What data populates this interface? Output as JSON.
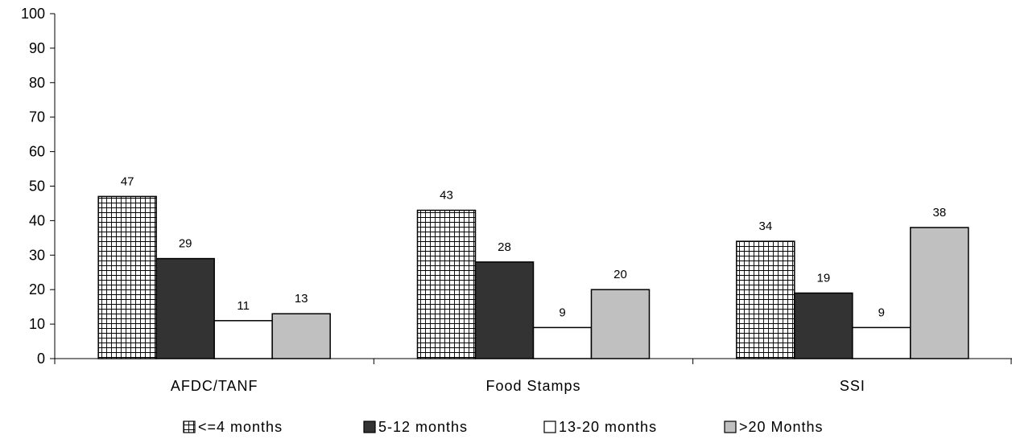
{
  "chart_data": {
    "type": "bar",
    "categories": [
      "AFDC/TANF",
      "Food Stamps",
      "SSI"
    ],
    "series": [
      {
        "name": "<=4 months",
        "values": [
          47,
          43,
          34
        ],
        "labels": [
          "47",
          "43",
          "34"
        ],
        "fill": "grid-pattern"
      },
      {
        "name": "5-12 months",
        "values": [
          29,
          28,
          19
        ],
        "labels": [
          "29",
          "28",
          "19"
        ],
        "fill": "#333333"
      },
      {
        "name": "13-20 months",
        "values": [
          11,
          9,
          9
        ],
        "labels": [
          "11",
          "9",
          "9"
        ],
        "fill": "#ffffff"
      },
      {
        "name": ">20 Months",
        "values": [
          13,
          20,
          38
        ],
        "labels": [
          "13",
          "20",
          "38"
        ],
        "fill": "#c0c0c0"
      }
    ],
    "y_ticks": [
      "0",
      "10",
      "20",
      "30",
      "40",
      "50",
      "60",
      "70",
      "80",
      "90",
      "100"
    ],
    "ylim": [
      0,
      100
    ],
    "title": "",
    "xlabel": "",
    "ylabel": "",
    "grid": false,
    "legend_position": "bottom"
  }
}
